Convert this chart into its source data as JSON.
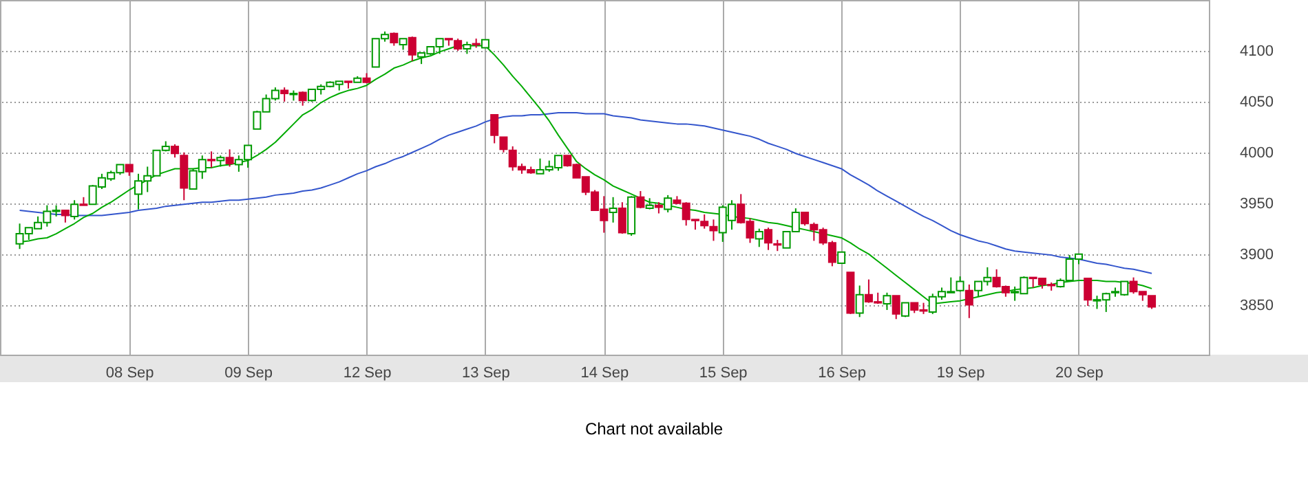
{
  "chart_data": {
    "type": "candlestick",
    "categories": [
      null,
      null,
      null,
      null,
      null,
      null,
      null,
      null,
      null,
      null,
      null,
      null,
      "08 Sep",
      null,
      null,
      null,
      null,
      null,
      null,
      null,
      null,
      null,
      null,
      null,
      null,
      "09 Sep",
      null,
      null,
      null,
      null,
      null,
      null,
      null,
      null,
      null,
      null,
      null,
      null,
      "12 Sep",
      null,
      null,
      null,
      null,
      null,
      null,
      null,
      null,
      null,
      null,
      null,
      null,
      "13 Sep",
      null,
      null,
      null,
      null,
      null,
      null,
      null,
      null,
      null,
      null,
      null,
      null,
      "14 Sep",
      null,
      null,
      null,
      null,
      null,
      null,
      null,
      null,
      null,
      null,
      null,
      null,
      "15 Sep",
      null,
      null,
      null,
      null,
      null,
      null,
      null,
      null,
      null,
      null,
      null,
      null,
      "16 Sep",
      null,
      null,
      null,
      null,
      null,
      null,
      null,
      null,
      null,
      null,
      null,
      null,
      "19 Sep",
      null,
      null,
      null,
      null,
      null,
      null,
      null,
      null,
      null,
      null,
      null,
      null,
      "20 Sep",
      null,
      null,
      null,
      null,
      null,
      null,
      null,
      null
    ],
    "ohlc": [
      [
        3910,
        3930,
        3905,
        3920
      ],
      [
        3920,
        3926,
        3914,
        3926
      ],
      [
        3925,
        3937,
        3925,
        3931
      ],
      [
        3931,
        3948,
        3927,
        3942
      ],
      [
        3942,
        3948,
        3937,
        3943
      ],
      [
        3943,
        3943,
        3931,
        3938
      ],
      [
        3937,
        3953,
        3934,
        3949
      ],
      [
        3949,
        3956,
        3948,
        3948
      ],
      [
        3949,
        3968,
        3949,
        3967
      ],
      [
        3966,
        3979,
        3964,
        3975
      ],
      [
        3974,
        3982,
        3972,
        3980
      ],
      [
        3980,
        3988,
        3978,
        3988
      ],
      [
        3988,
        3988,
        3977,
        3981
      ],
      [
        3959,
        3979,
        3944,
        3972
      ],
      [
        3972,
        3986,
        3961,
        3977
      ],
      [
        3977,
        4002,
        3977,
        4002
      ],
      [
        4002,
        4011,
        4001,
        4006
      ],
      [
        4006,
        4008,
        3995,
        3999
      ],
      [
        3997,
        4000,
        3953,
        3965
      ],
      [
        3964,
        3984,
        3964,
        3982
      ],
      [
        3981,
        3997,
        3974,
        3993
      ],
      [
        3993,
        4001,
        3985,
        3992
      ],
      [
        3992,
        3997,
        3986,
        3995
      ],
      [
        3995,
        4003,
        3986,
        3989
      ],
      [
        3988,
        3997,
        3981,
        3993
      ],
      [
        3993,
        4007,
        3985,
        4007
      ],
      [
        4023,
        4041,
        4023,
        4040
      ],
      [
        4040,
        4057,
        4040,
        4053
      ],
      [
        4053,
        4064,
        4051,
        4061
      ],
      [
        4061,
        4064,
        4050,
        4058
      ],
      [
        4057,
        4061,
        4051,
        4058
      ],
      [
        4059,
        4060,
        4046,
        4051
      ],
      [
        4051,
        4062,
        4050,
        4062
      ],
      [
        4062,
        4067,
        4057,
        4065
      ],
      [
        4065,
        4070,
        4064,
        4069
      ],
      [
        4067,
        4070,
        4061,
        4070
      ],
      [
        4070,
        4070,
        4063,
        4069
      ],
      [
        4069,
        4075,
        4069,
        4073
      ],
      [
        4073,
        4078,
        4068,
        4069
      ],
      [
        4084,
        4112,
        4084,
        4112
      ],
      [
        4112,
        4119,
        4109,
        4116
      ],
      [
        4117,
        4118,
        4105,
        4108
      ],
      [
        4106,
        4112,
        4101,
        4112
      ],
      [
        4113,
        4114,
        4090,
        4096
      ],
      [
        4094,
        4098,
        4087,
        4098
      ],
      [
        4097,
        4104,
        4096,
        4104
      ],
      [
        4104,
        4112,
        4097,
        4112
      ],
      [
        4112,
        4112,
        4105,
        4111
      ],
      [
        4110,
        4112,
        4100,
        4102
      ],
      [
        4102,
        4109,
        4097,
        4106
      ],
      [
        4107,
        4112,
        4103,
        4106
      ],
      [
        4103,
        4111,
        4103,
        4111
      ],
      [
        4037,
        4037,
        4009,
        4017
      ],
      [
        4015,
        4015,
        4000,
        4003
      ],
      [
        4002,
        4006,
        3982,
        3986
      ],
      [
        3986,
        3989,
        3979,
        3983
      ],
      [
        3983,
        3986,
        3979,
        3980
      ],
      [
        3979,
        3994,
        3979,
        3983
      ],
      [
        3983,
        3992,
        3981,
        3986
      ],
      [
        3985,
        3997,
        3982,
        3997
      ],
      [
        3997,
        3997,
        3986,
        3987
      ],
      [
        3988,
        3989,
        3975,
        3975
      ],
      [
        3976,
        3976,
        3958,
        3961
      ],
      [
        3961,
        3963,
        3943,
        3943
      ],
      [
        3944,
        3957,
        3921,
        3933
      ],
      [
        3941,
        3956,
        3931,
        3945
      ],
      [
        3945,
        3951,
        3920,
        3921
      ],
      [
        3920,
        3957,
        3918,
        3956
      ],
      [
        3956,
        3962,
        3945,
        3946
      ],
      [
        3945,
        3955,
        3944,
        3948
      ],
      [
        3948,
        3951,
        3940,
        3946
      ],
      [
        3944,
        3958,
        3941,
        3955
      ],
      [
        3953,
        3957,
        3949,
        3950
      ],
      [
        3950,
        3951,
        3928,
        3934
      ],
      [
        3934,
        3934,
        3924,
        3933
      ],
      [
        3932,
        3939,
        3925,
        3928
      ],
      [
        3927,
        3934,
        3913,
        3923
      ],
      [
        3921,
        3948,
        3912,
        3946
      ],
      [
        3933,
        3953,
        3924,
        3949
      ],
      [
        3949,
        3959,
        3930,
        3931
      ],
      [
        3932,
        3935,
        3911,
        3916
      ],
      [
        3915,
        3925,
        3907,
        3922
      ],
      [
        3924,
        3926,
        3904,
        3911
      ],
      [
        3910,
        3914,
        3903,
        3909
      ],
      [
        3906,
        3922,
        3906,
        3922
      ],
      [
        3922,
        3945,
        3922,
        3941
      ],
      [
        3941,
        3941,
        3928,
        3930
      ],
      [
        3929,
        3931,
        3913,
        3924
      ],
      [
        3924,
        3926,
        3909,
        3911
      ],
      [
        3911,
        3913,
        3888,
        3892
      ],
      [
        3891,
        3902,
        3891,
        3902
      ],
      [
        3882,
        3882,
        3841,
        3842
      ],
      [
        3842,
        3869,
        3838,
        3860
      ],
      [
        3860,
        3875,
        3852,
        3853
      ],
      [
        3853,
        3862,
        3851,
        3852
      ],
      [
        3851,
        3862,
        3845,
        3859
      ],
      [
        3859,
        3859,
        3836,
        3841
      ],
      [
        3839,
        3852,
        3838,
        3852
      ],
      [
        3852,
        3852,
        3842,
        3845
      ],
      [
        3845,
        3852,
        3841,
        3844
      ],
      [
        3843,
        3861,
        3841,
        3858
      ],
      [
        3858,
        3867,
        3855,
        3863
      ],
      [
        3862,
        3877,
        3862,
        3863
      ],
      [
        3864,
        3878,
        3863,
        3873
      ],
      [
        3864,
        3870,
        3837,
        3850
      ],
      [
        3864,
        3873,
        3858,
        3873
      ],
      [
        3873,
        3887,
        3869,
        3877
      ],
      [
        3877,
        3885,
        3867,
        3868
      ],
      [
        3868,
        3869,
        3858,
        3862
      ],
      [
        3862,
        3868,
        3854,
        3863
      ],
      [
        3861,
        3878,
        3861,
        3877
      ],
      [
        3877,
        3877,
        3867,
        3876
      ],
      [
        3876,
        3876,
        3866,
        3870
      ],
      [
        3870,
        3872,
        3864,
        3869
      ],
      [
        3868,
        3876,
        3867,
        3874
      ],
      [
        3874,
        3899,
        3874,
        3895
      ],
      [
        3895,
        3900,
        3890,
        3900
      ],
      [
        3876,
        3876,
        3849,
        3855
      ],
      [
        3854,
        3859,
        3846,
        3855
      ],
      [
        3855,
        3862,
        3843,
        3861
      ],
      [
        3862,
        3867,
        3858,
        3863
      ],
      [
        3860,
        3873,
        3859,
        3873
      ],
      [
        3873,
        3877,
        3861,
        3863
      ],
      [
        3863,
        3863,
        3854,
        3860
      ],
      [
        3859,
        3859,
        3846,
        3848
      ]
    ],
    "colors": [
      "#009900",
      "#009900",
      "#009900",
      "#009900",
      "#009900",
      "#cc0033",
      "#009900",
      "#cc0033",
      "#009900",
      "#009900",
      "#009900",
      "#009900",
      "#cc0033",
      "#009900",
      "#009900",
      "#009900",
      "#009900",
      "#cc0033",
      "#cc0033",
      "#009900",
      "#009900",
      "#cc0033",
      "#009900",
      "#cc0033",
      "#009900",
      "#009900",
      "#009900",
      "#009900",
      "#009900",
      "#cc0033",
      "#009900",
      "#cc0033",
      "#009900",
      "#009900",
      "#009900",
      "#009900",
      "#cc0033",
      "#009900",
      "#cc0033",
      "#009900",
      "#009900",
      "#cc0033",
      "#009900",
      "#cc0033",
      "#009900",
      "#009900",
      "#009900",
      "#cc0033",
      "#cc0033",
      "#009900",
      "#cc0033",
      "#009900",
      "#cc0033",
      "#cc0033",
      "#cc0033",
      "#cc0033",
      "#cc0033",
      "#009900",
      "#009900",
      "#009900",
      "#cc0033",
      "#cc0033",
      "#cc0033",
      "#cc0033",
      "#cc0033",
      "#009900",
      "#cc0033",
      "#009900",
      "#cc0033",
      "#009900",
      "#cc0033",
      "#009900",
      "#cc0033",
      "#cc0033",
      "#cc0033",
      "#cc0033",
      "#cc0033",
      "#009900",
      "#009900",
      "#cc0033",
      "#cc0033",
      "#009900",
      "#cc0033",
      "#cc0033",
      "#009900",
      "#009900",
      "#cc0033",
      "#cc0033",
      "#cc0033",
      "#cc0033",
      "#009900",
      "#cc0033",
      "#009900",
      "#cc0033",
      "#cc0033",
      "#009900",
      "#cc0033",
      "#009900",
      "#cc0033",
      "#cc0033",
      "#009900",
      "#009900",
      "#009900",
      "#009900",
      "#cc0033",
      "#009900",
      "#009900",
      "#cc0033",
      "#cc0033",
      "#009900",
      "#009900",
      "#cc0033",
      "#cc0033",
      "#cc0033",
      "#009900",
      "#009900",
      "#009900",
      "#cc0033",
      "#009900",
      "#009900",
      "#009900",
      "#009900",
      "#cc0033",
      "#cc0033",
      "#cc0033"
    ],
    "series": [
      {
        "type": "line",
        "color": "#3355cc",
        "values": [
          3943,
          3942,
          3941,
          3940,
          3939,
          3939,
          3938,
          3938,
          3938,
          3938,
          3939,
          3940,
          3941,
          3943,
          3944,
          3945,
          3947,
          3948,
          3949,
          3950,
          3951,
          3951,
          3952,
          3953,
          3953,
          3954,
          3955,
          3956,
          3958,
          3959,
          3960,
          3962,
          3963,
          3965,
          3968,
          3971,
          3975,
          3979,
          3982,
          3986,
          3989,
          3993,
          3996,
          4000,
          4004,
          4008,
          4013,
          4017,
          4020,
          4023,
          4026,
          4030,
          4033,
          4035,
          4036,
          4036,
          4037,
          4037,
          4038,
          4039,
          4039,
          4039,
          4038,
          4038,
          4038,
          4036,
          4035,
          4034,
          4032,
          4031,
          4030,
          4029,
          4028,
          4028,
          4027,
          4026,
          4024,
          4022,
          4020,
          4018,
          4016,
          4013,
          4009,
          4006,
          4003,
          3999,
          3996,
          3993,
          3990,
          3987,
          3984,
          3978,
          3973,
          3968,
          3962,
          3957,
          3952,
          3947,
          3942,
          3937,
          3933,
          3928,
          3923,
          3919,
          3916,
          3913,
          3911,
          3908,
          3905,
          3903,
          3902,
          3901,
          3900,
          3899,
          3897,
          3896,
          3895,
          3893,
          3891,
          3890,
          3888,
          3886,
          3885,
          3883,
          3881
        ]
      },
      {
        "type": "line",
        "color": "#00aa00",
        "values": [
          3912,
          3913,
          3915,
          3916,
          3920,
          3925,
          3930,
          3936,
          3940,
          3946,
          3951,
          3957,
          3963,
          3968,
          3973,
          3978,
          3981,
          3984,
          3984,
          3984,
          3985,
          3985,
          3987,
          3988,
          3990,
          3992,
          3997,
          4003,
          4010,
          4019,
          4028,
          4037,
          4042,
          4049,
          4054,
          4058,
          4061,
          4063,
          4066,
          4072,
          4077,
          4083,
          4086,
          4090,
          4093,
          4095,
          4099,
          4102,
          4105,
          4105,
          4105,
          4105,
          4096,
          4086,
          4075,
          4065,
          4054,
          4043,
          4031,
          4017,
          4004,
          3991,
          3984,
          3978,
          3973,
          3967,
          3963,
          3959,
          3955,
          3951,
          3950,
          3948,
          3946,
          3944,
          3943,
          3941,
          3940,
          3939,
          3937,
          3936,
          3935,
          3933,
          3931,
          3930,
          3928,
          3926,
          3924,
          3922,
          3920,
          3918,
          3916,
          3911,
          3905,
          3900,
          3893,
          3886,
          3879,
          3872,
          3865,
          3858,
          3851,
          3852,
          3853,
          3854,
          3856,
          3858,
          3860,
          3862,
          3863,
          3865,
          3866,
          3867,
          3869,
          3870,
          3872,
          3873,
          3874,
          3874,
          3874,
          3873,
          3873,
          3872,
          3871,
          3869,
          3866
        ]
      }
    ],
    "ylim": [
      3801,
      4150
    ],
    "yticks": [
      3850,
      3900,
      3950,
      4000,
      4050,
      4100
    ],
    "grid": true,
    "annotations": [
      "Chart not available"
    ]
  }
}
